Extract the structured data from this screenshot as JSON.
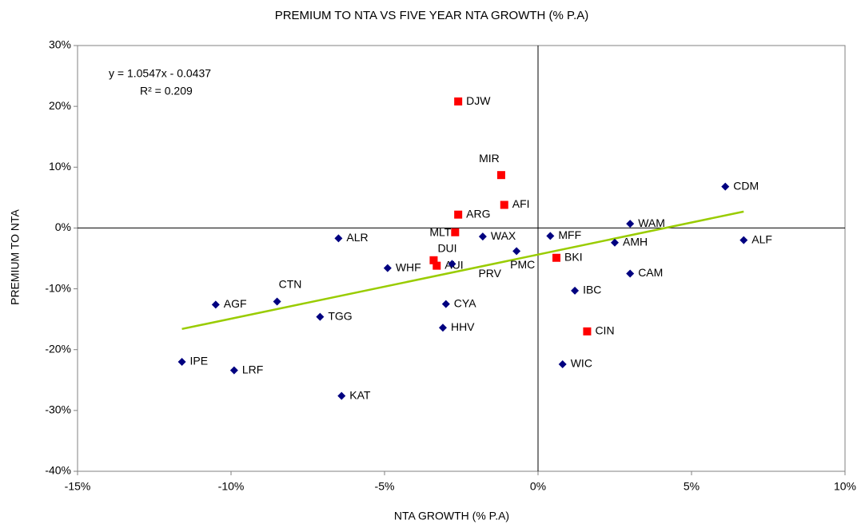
{
  "chart_data": {
    "type": "scatter",
    "title": "PREMIUM TO NTA VS FIVE YEAR NTA GROWTH (% P.A)",
    "x_label": "NTA GROWTH (% P.A)",
    "y_label": "PREMIUM TO NTA",
    "annotations": [
      "y = 1.0547x - 0.0437",
      "R² = 0.209"
    ],
    "xlim": [
      -15,
      10
    ],
    "ylim": [
      -40,
      30
    ],
    "xticks": [
      {
        "value": -15,
        "label": "-15%"
      },
      {
        "value": -10,
        "label": "-10%"
      },
      {
        "value": -5,
        "label": "-5%"
      },
      {
        "value": 0,
        "label": "0%"
      },
      {
        "value": 5,
        "label": "5%"
      },
      {
        "value": 10,
        "label": "10%"
      }
    ],
    "yticks": [
      {
        "value": -40,
        "label": "-40%"
      },
      {
        "value": -30,
        "label": "-30%"
      },
      {
        "value": -20,
        "label": "-20%"
      },
      {
        "value": -10,
        "label": "-10%"
      },
      {
        "value": 0,
        "label": "0%"
      },
      {
        "value": 10,
        "label": "10%"
      },
      {
        "value": 20,
        "label": "20%"
      },
      {
        "value": 30,
        "label": "30%"
      }
    ],
    "series": [
      {
        "color": "#ff0000",
        "marker": "square",
        "labels": [
          "DJW",
          "MIR",
          "AFI",
          "ARG",
          "MLT",
          "DUI",
          "AUI",
          "BKI",
          "CIN"
        ],
        "x": [
          -2.6,
          -1.2,
          -1.1,
          -2.6,
          -2.7,
          -3.4,
          -3.3,
          0.6,
          1.6
        ],
        "values": [
          20.8,
          8.7,
          3.8,
          2.2,
          -0.7,
          -5.3,
          -6.2,
          -4.9,
          -17.0
        ]
      },
      {
        "color": "#000080",
        "marker": "diamond",
        "labels": [
          "CDM",
          "WAM",
          "ALF",
          "AMH",
          "MFF",
          "WAX",
          "PMC",
          "PRV",
          "ALR",
          "WHF",
          "CAM",
          "IBC",
          "CTN",
          "AGF",
          "TGG",
          "CYA",
          "HHV",
          "IPE",
          "LRF",
          "KAT",
          "WIC"
        ],
        "x": [
          6.1,
          3.0,
          6.7,
          2.5,
          0.4,
          -1.8,
          -0.7,
          -2.8,
          -6.5,
          -4.9,
          3.0,
          1.2,
          -8.5,
          -10.5,
          -7.1,
          -3.0,
          -3.1,
          -11.6,
          -9.9,
          -6.4,
          0.8
        ],
        "values": [
          6.8,
          0.7,
          -2.0,
          -2.4,
          -1.3,
          -1.4,
          -3.8,
          -5.9,
          -1.7,
          -6.6,
          -7.5,
          -10.3,
          -12.1,
          -12.6,
          -14.6,
          -12.5,
          -16.4,
          -22.0,
          -23.4,
          -27.6,
          -22.4
        ]
      }
    ],
    "trendline": {
      "color": "#99cc00",
      "x": [
        -11.6,
        6.7
      ],
      "values": [
        -16.6,
        2.7
      ]
    }
  }
}
